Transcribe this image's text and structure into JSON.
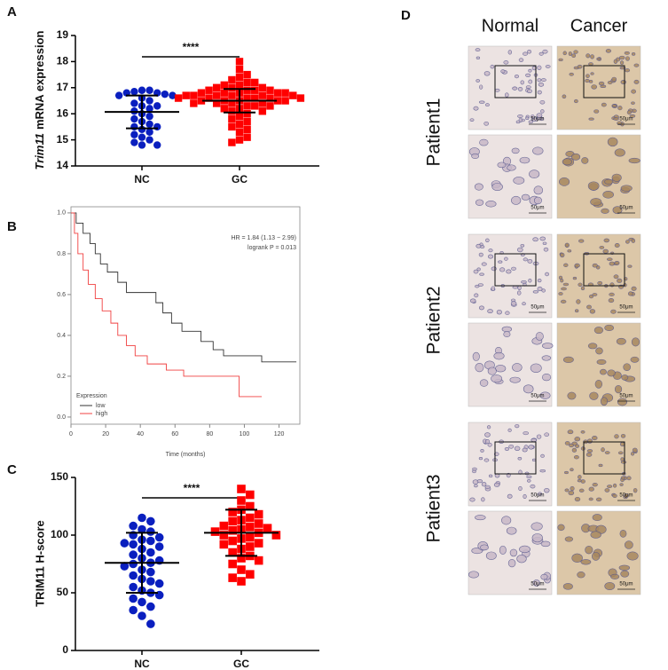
{
  "chart_data": [
    {
      "type": "dotplot",
      "panel": "A",
      "ylabel_italic": "Trim11",
      "ylabel": "mRNA expression",
      "categories": [
        "NC",
        "GC"
      ],
      "significance": "****",
      "groups": [
        {
          "color": "#0a1fbf",
          "marker": "circle",
          "mean": 16.07,
          "sd": 0.63,
          "values": [
            16.9,
            16.9,
            16.85,
            16.8,
            16.8,
            16.75,
            16.7,
            16.7,
            16.6,
            16.5,
            16.4,
            16.3,
            16.3,
            16.2,
            16.1,
            16.0,
            15.9,
            15.8,
            15.7,
            15.6,
            15.5,
            15.5,
            15.4,
            15.3,
            15.2,
            15.1,
            15.0,
            14.9,
            14.8,
            14.8
          ]
        },
        {
          "color": "#ff0000",
          "marker": "square",
          "mean": 16.5,
          "sd": 0.45,
          "values": [
            18.0,
            17.7,
            17.5,
            17.4,
            17.3,
            17.2,
            17.2,
            17.1,
            17.1,
            17.0,
            17.0,
            17.0,
            16.9,
            16.9,
            16.9,
            16.9,
            16.8,
            16.8,
            16.8,
            16.8,
            16.8,
            16.7,
            16.7,
            16.7,
            16.7,
            16.7,
            16.7,
            16.6,
            16.6,
            16.6,
            16.6,
            16.6,
            16.6,
            16.5,
            16.5,
            16.5,
            16.5,
            16.5,
            16.4,
            16.4,
            16.4,
            16.4,
            16.3,
            16.3,
            16.3,
            16.2,
            16.2,
            16.1,
            16.1,
            16.0,
            15.9,
            15.8,
            15.7,
            15.6,
            15.5,
            15.4,
            15.3,
            15.1,
            15.0,
            14.9
          ]
        }
      ],
      "ylim": [
        14,
        19
      ],
      "yticks": [
        14,
        15,
        16,
        17,
        18,
        19
      ]
    },
    {
      "type": "line",
      "panel": "B",
      "annotations": [
        "HR = 1.84 (1.13 − 2.99)",
        "logrank P = 0.013"
      ],
      "xlabel": "Time (months)",
      "legend_title": "Expression",
      "legend_position": "lower left",
      "series": [
        {
          "name": "low",
          "color": "#333333",
          "x": [
            0,
            3,
            3,
            7,
            7,
            11,
            11,
            14,
            14,
            17,
            17,
            21,
            21,
            27,
            27,
            32,
            32,
            49,
            49,
            53,
            53,
            58,
            58,
            64,
            64,
            75,
            75,
            82,
            82,
            88,
            88,
            110,
            110,
            130
          ],
          "values": [
            1,
            1,
            0.95,
            0.95,
            0.9,
            0.9,
            0.85,
            0.85,
            0.8,
            0.8,
            0.75,
            0.75,
            0.71,
            0.71,
            0.66,
            0.66,
            0.61,
            0.61,
            0.56,
            0.56,
            0.51,
            0.51,
            0.46,
            0.46,
            0.42,
            0.42,
            0.37,
            0.37,
            0.33,
            0.33,
            0.3,
            0.3,
            0.27,
            0.27
          ]
        },
        {
          "name": "high",
          "color": "#f04040",
          "x": [
            0,
            2,
            2,
            4,
            4,
            7,
            7,
            10,
            10,
            14,
            14,
            18,
            18,
            23,
            23,
            27,
            27,
            32,
            32,
            37,
            37,
            44,
            44,
            55,
            55,
            65,
            65,
            97,
            97,
            110
          ],
          "values": [
            1,
            1,
            0.9,
            0.9,
            0.8,
            0.8,
            0.72,
            0.72,
            0.65,
            0.65,
            0.58,
            0.58,
            0.52,
            0.52,
            0.46,
            0.46,
            0.4,
            0.4,
            0.35,
            0.35,
            0.3,
            0.3,
            0.26,
            0.26,
            0.23,
            0.23,
            0.2,
            0.2,
            0.1,
            0.1
          ]
        }
      ],
      "xlim": [
        0,
        132
      ],
      "xticks": [
        0,
        20,
        40,
        60,
        80,
        100,
        120
      ],
      "ylim": [
        -0.035,
        1.03
      ],
      "yticks": [
        {
          "value": 0,
          "label": "0.0"
        },
        {
          "value": 0.2,
          "label": "0.2"
        },
        {
          "value": 0.4,
          "label": "0.4"
        },
        {
          "value": 0.6,
          "label": "0.6"
        },
        {
          "value": 0.8,
          "label": "0.8"
        },
        {
          "value": 1,
          "label": "1.0"
        }
      ]
    },
    {
      "type": "dotplot",
      "panel": "C",
      "ylabel": "TRIM11 H-score",
      "categories": [
        "NC",
        "GC"
      ],
      "significance": "****",
      "groups": [
        {
          "color": "#0a1fbf",
          "marker": "circle",
          "mean": 76,
          "sd": 26,
          "values": [
            115,
            112,
            108,
            105,
            103,
            100,
            98,
            96,
            95,
            93,
            92,
            90,
            88,
            85,
            83,
            80,
            78,
            76,
            75,
            73,
            70,
            68,
            65,
            62,
            60,
            58,
            55,
            52,
            50,
            48,
            45,
            42,
            38,
            35,
            30,
            23
          ]
        },
        {
          "color": "#ff0000",
          "marker": "square",
          "mean": 102,
          "sd": 20,
          "values": [
            140,
            135,
            130,
            125,
            122,
            120,
            118,
            115,
            113,
            112,
            110,
            108,
            107,
            106,
            105,
            104,
            103,
            102,
            100,
            100,
            98,
            97,
            95,
            93,
            92,
            90,
            88,
            85,
            82,
            80,
            78,
            75,
            70,
            66,
            63,
            60
          ]
        }
      ],
      "ylim": [
        0,
        150
      ],
      "yticks": [
        0,
        50,
        100,
        150
      ]
    }
  ],
  "histology": {
    "panel": "D",
    "columns": [
      "Normal",
      "Cancer"
    ],
    "patients": [
      "Patient1",
      "Patient2",
      "Patient3"
    ],
    "scale_bar": "50μm"
  }
}
